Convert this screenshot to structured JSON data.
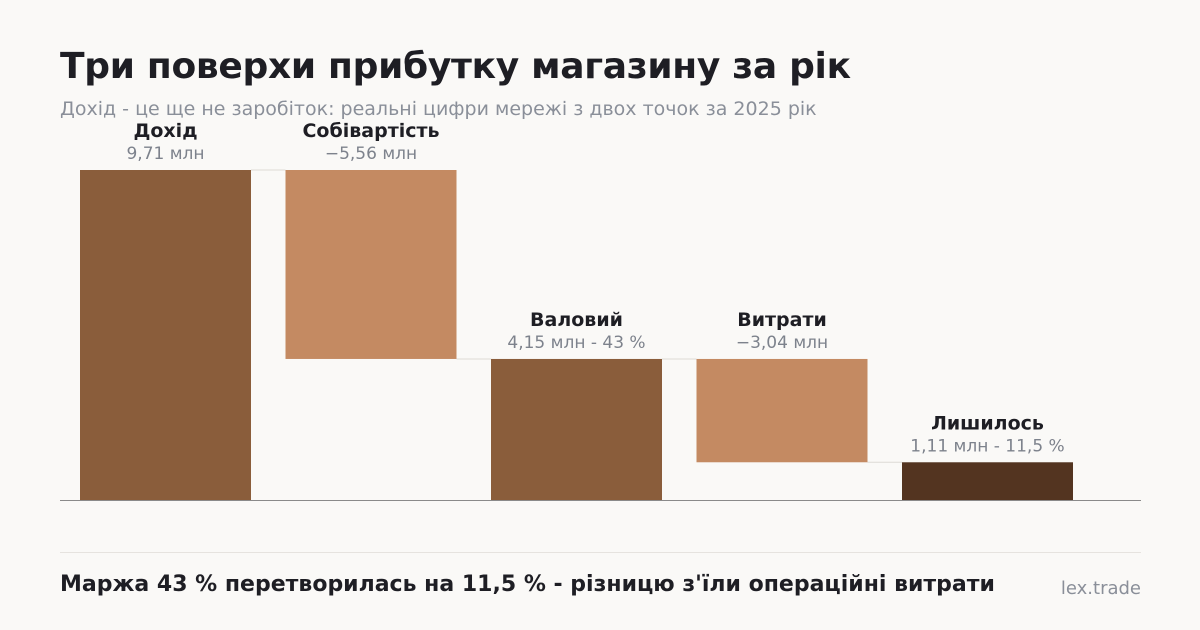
{
  "title": "Три поверхи прибутку магазину за рік",
  "subtitle": "Дохід - це ще не заробіток: реальні цифри мережі з двох точок за 2025 рік",
  "footer": {
    "takeaway": "Маржа 43 % перетворилась на 11,5 % - різницю з'їли операційні витрати",
    "source": "lex.trade"
  },
  "colors": {
    "total": "#8a5d3b",
    "decrease": "#c48a62",
    "result": "#533420",
    "result_label": "#533420",
    "axis": "#8a8a8a",
    "connector": "#dddad6"
  },
  "chart_data": {
    "type": "bar",
    "subtype": "waterfall",
    "unit": "млн",
    "ylim": [
      0,
      9.71
    ],
    "grid": false,
    "legend": "none",
    "categories": [
      "Дохід",
      "Собівартість",
      "Валовий",
      "Витрати",
      "Лишилось"
    ],
    "bars": [
      {
        "label": "Дохід",
        "kind": "total",
        "start": 0,
        "end": 9.71,
        "value_label": "9,71 млн"
      },
      {
        "label": "Собівартість",
        "kind": "decrease",
        "start": 9.71,
        "end": 4.15,
        "value_label": "−5,56 млн"
      },
      {
        "label": "Валовий",
        "kind": "total",
        "start": 0,
        "end": 4.15,
        "value_label": "4,15 млн - 43 %"
      },
      {
        "label": "Витрати",
        "kind": "decrease",
        "start": 4.15,
        "end": 1.11,
        "value_label": "−3,04 млн"
      },
      {
        "label": "Лишилось",
        "kind": "result",
        "start": 0,
        "end": 1.11,
        "value_label": "1,11 млн - 11,5 %"
      }
    ]
  }
}
